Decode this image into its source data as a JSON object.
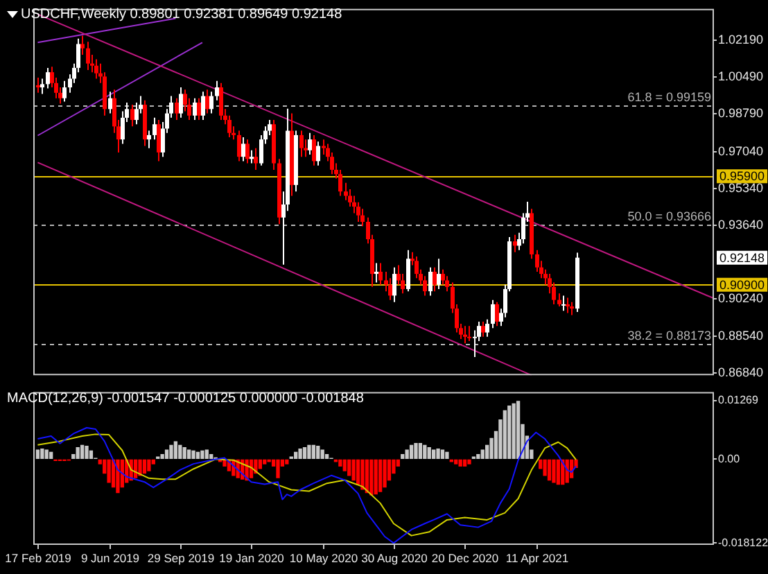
{
  "chart_data": [
    {
      "type": "candlestick",
      "title": "USDCHF,Weekly  0.89801 0.92381 0.89649 0.92148",
      "x": [
        "2019-02-17",
        "2019-02-24",
        "2019-03-03",
        "2019-03-10",
        "2019-03-17",
        "2019-03-24",
        "2019-03-31",
        "2019-04-07",
        "2019-04-14",
        "2019-04-21",
        "2019-04-28",
        "2019-05-05",
        "2019-05-12",
        "2019-05-19",
        "2019-05-26",
        "2019-06-02",
        "2019-06-09",
        "2019-06-16",
        "2019-06-23",
        "2019-06-30",
        "2019-07-07",
        "2019-07-14",
        "2019-07-21",
        "2019-07-28",
        "2019-08-04",
        "2019-08-11",
        "2019-08-18",
        "2019-08-25",
        "2019-09-01",
        "2019-09-08",
        "2019-09-15",
        "2019-09-22",
        "2019-09-29",
        "2019-10-06",
        "2019-10-13",
        "2019-10-20",
        "2019-10-27",
        "2019-11-03",
        "2019-11-10",
        "2019-11-17",
        "2019-11-24",
        "2019-12-01",
        "2019-12-08",
        "2019-12-15",
        "2019-12-22",
        "2019-12-29",
        "2020-01-05",
        "2020-01-12",
        "2020-01-19",
        "2020-01-26",
        "2020-02-02",
        "2020-02-09",
        "2020-02-16",
        "2020-02-23",
        "2020-03-01",
        "2020-03-08",
        "2020-03-15",
        "2020-03-22",
        "2020-03-29",
        "2020-04-05",
        "2020-04-12",
        "2020-04-19",
        "2020-04-26",
        "2020-05-03",
        "2020-05-10",
        "2020-05-17",
        "2020-05-24",
        "2020-05-31",
        "2020-06-07",
        "2020-06-14",
        "2020-06-21",
        "2020-06-28",
        "2020-07-05",
        "2020-07-12",
        "2020-07-19",
        "2020-07-26",
        "2020-08-02",
        "2020-08-09",
        "2020-08-16",
        "2020-08-23",
        "2020-08-30",
        "2020-09-06",
        "2020-09-13",
        "2020-09-20",
        "2020-09-27",
        "2020-10-04",
        "2020-10-11",
        "2020-10-18",
        "2020-10-25",
        "2020-11-01",
        "2020-11-08",
        "2020-11-15",
        "2020-11-22",
        "2020-11-29",
        "2020-12-06",
        "2020-12-13",
        "2020-12-20",
        "2020-12-27",
        "2021-01-03",
        "2021-01-10",
        "2021-01-17",
        "2021-01-24",
        "2021-01-31",
        "2021-02-07",
        "2021-02-14",
        "2021-02-21",
        "2021-02-28",
        "2021-03-07",
        "2021-03-14",
        "2021-03-21",
        "2021-03-28",
        "2021-04-04",
        "2021-04-11",
        "2021-04-18",
        "2021-04-25",
        "2021-05-02",
        "2021-05-09",
        "2021-05-16",
        "2021-05-23",
        "2021-05-30",
        "2021-06-06",
        "2021-06-13"
      ],
      "ohlc": [
        [
          1.001,
          1.0045,
          0.9975,
          1.0
        ],
        [
          1.0,
          1.004,
          0.997,
          1.0015
        ],
        [
          1.0015,
          1.009,
          0.9995,
          1.007
        ],
        [
          1.007,
          1.0095,
          1.0,
          1.002
        ],
        [
          1.002,
          1.0045,
          0.995,
          0.9975
        ],
        [
          0.9975,
          1.0,
          0.9925,
          0.995
        ],
        [
          0.995,
          1.003,
          0.9935,
          1.0
        ],
        [
          1.0,
          1.006,
          0.9975,
          1.004
        ],
        [
          1.004,
          1.011,
          1.002,
          1.009
        ],
        [
          1.009,
          1.0225,
          1.007,
          1.02
        ],
        [
          1.02,
          1.0238,
          1.015,
          1.018
        ],
        [
          1.018,
          1.021,
          1.008,
          1.011
        ],
        [
          1.011,
          1.015,
          1.007,
          1.01
        ],
        [
          1.01,
          1.013,
          1.004,
          1.0065
        ],
        [
          1.0065,
          1.011,
          1.002,
          1.005
        ],
        [
          1.005,
          1.007,
          0.987,
          0.99
        ],
        [
          0.99,
          0.998,
          0.988,
          0.995
        ],
        [
          0.995,
          0.999,
          0.979,
          0.982
        ],
        [
          0.982,
          0.985,
          0.97,
          0.976
        ],
        [
          0.976,
          0.989,
          0.974,
          0.986
        ],
        [
          0.986,
          0.993,
          0.984,
          0.99
        ],
        [
          0.99,
          0.992,
          0.982,
          0.985
        ],
        [
          0.985,
          0.993,
          0.983,
          0.99
        ],
        [
          0.99,
          0.996,
          0.988,
          0.992
        ],
        [
          0.992,
          0.994,
          0.973,
          0.976
        ],
        [
          0.976,
          0.98,
          0.972,
          0.978
        ],
        [
          0.978,
          0.986,
          0.976,
          0.983
        ],
        [
          0.983,
          0.985,
          0.966,
          0.97
        ],
        [
          0.97,
          0.984,
          0.968,
          0.981
        ],
        [
          0.981,
          0.99,
          0.979,
          0.988
        ],
        [
          0.988,
          0.996,
          0.986,
          0.993
        ],
        [
          0.993,
          0.995,
          0.985,
          0.988
        ],
        [
          0.988,
          1.0,
          0.986,
          0.997
        ],
        [
          0.997,
          0.999,
          0.989,
          0.992
        ],
        [
          0.992,
          0.995,
          0.985,
          0.987
        ],
        [
          0.987,
          0.995,
          0.985,
          0.993
        ],
        [
          0.993,
          0.995,
          0.985,
          0.987
        ],
        [
          0.987,
          0.998,
          0.985,
          0.996
        ],
        [
          0.996,
          0.999,
          0.988,
          0.99
        ],
        [
          0.99,
          0.998,
          0.988,
          0.996
        ],
        [
          0.996,
          1.003,
          0.994,
          1.0
        ],
        [
          1.0,
          1.002,
          0.985,
          0.987
        ],
        [
          0.987,
          0.99,
          0.983,
          0.985
        ],
        [
          0.985,
          0.987,
          0.977,
          0.979
        ],
        [
          0.979,
          0.982,
          0.976,
          0.978
        ],
        [
          0.978,
          0.98,
          0.966,
          0.968
        ],
        [
          0.968,
          0.977,
          0.966,
          0.974
        ],
        [
          0.974,
          0.976,
          0.965,
          0.967
        ],
        [
          0.967,
          0.971,
          0.965,
          0.968
        ],
        [
          0.968,
          0.972,
          0.962,
          0.965
        ],
        [
          0.965,
          0.978,
          0.964,
          0.976
        ],
        [
          0.976,
          0.982,
          0.974,
          0.98
        ],
        [
          0.98,
          0.985,
          0.978,
          0.983
        ],
        [
          0.983,
          0.985,
          0.962,
          0.965
        ],
        [
          0.965,
          0.967,
          0.937,
          0.94
        ],
        [
          0.94,
          0.952,
          0.9183,
          0.946
        ],
        [
          0.946,
          0.9902,
          0.943,
          0.98
        ],
        [
          0.98,
          0.988,
          0.95,
          0.955
        ],
        [
          0.955,
          0.98,
          0.952,
          0.978
        ],
        [
          0.978,
          0.98,
          0.968,
          0.972
        ],
        [
          0.972,
          0.976,
          0.968,
          0.971
        ],
        [
          0.971,
          0.979,
          0.969,
          0.976
        ],
        [
          0.976,
          0.978,
          0.964,
          0.966
        ],
        [
          0.966,
          0.975,
          0.964,
          0.973
        ],
        [
          0.973,
          0.976,
          0.969,
          0.972
        ],
        [
          0.972,
          0.974,
          0.966,
          0.968
        ],
        [
          0.968,
          0.97,
          0.96,
          0.962
        ],
        [
          0.962,
          0.965,
          0.958,
          0.96
        ],
        [
          0.96,
          0.962,
          0.95,
          0.952
        ],
        [
          0.952,
          0.956,
          0.948,
          0.95
        ],
        [
          0.95,
          0.953,
          0.945,
          0.947
        ],
        [
          0.947,
          0.95,
          0.942,
          0.945
        ],
        [
          0.945,
          0.947,
          0.938,
          0.941
        ],
        [
          0.941,
          0.944,
          0.936,
          0.938
        ],
        [
          0.938,
          0.94,
          0.928,
          0.93
        ],
        [
          0.93,
          0.932,
          0.908,
          0.914
        ],
        [
          0.914,
          0.919,
          0.91,
          0.915
        ],
        [
          0.915,
          0.919,
          0.909,
          0.911
        ],
        [
          0.911,
          0.915,
          0.906,
          0.909
        ],
        [
          0.909,
          0.912,
          0.902,
          0.904
        ],
        [
          0.904,
          0.917,
          0.901,
          0.914
        ],
        [
          0.914,
          0.918,
          0.909,
          0.911
        ],
        [
          0.911,
          0.914,
          0.905,
          0.907
        ],
        [
          0.907,
          0.925,
          0.906,
          0.921
        ],
        [
          0.921,
          0.924,
          0.918,
          0.92
        ],
        [
          0.92,
          0.922,
          0.912,
          0.914
        ],
        [
          0.914,
          0.916,
          0.909,
          0.911
        ],
        [
          0.911,
          0.913,
          0.904,
          0.906
        ],
        [
          0.906,
          0.917,
          0.904,
          0.915
        ],
        [
          0.915,
          0.917,
          0.906,
          0.909
        ],
        [
          0.909,
          0.921,
          0.907,
          0.914
        ],
        [
          0.914,
          0.916,
          0.909,
          0.911
        ],
        [
          0.911,
          0.913,
          0.906,
          0.908
        ],
        [
          0.908,
          0.91,
          0.896,
          0.898
        ],
        [
          0.898,
          0.9,
          0.887,
          0.889
        ],
        [
          0.889,
          0.891,
          0.884,
          0.886
        ],
        [
          0.886,
          0.89,
          0.882,
          0.885
        ],
        [
          0.885,
          0.89,
          0.883,
          0.885
        ],
        [
          0.885,
          0.888,
          0.8757,
          0.885
        ],
        [
          0.885,
          0.892,
          0.883,
          0.89
        ],
        [
          0.89,
          0.892,
          0.885,
          0.887
        ],
        [
          0.887,
          0.893,
          0.885,
          0.891
        ],
        [
          0.891,
          0.902,
          0.889,
          0.9
        ],
        [
          0.9,
          0.901,
          0.89,
          0.892
        ],
        [
          0.892,
          0.898,
          0.89,
          0.896
        ],
        [
          0.896,
          0.909,
          0.894,
          0.907
        ],
        [
          0.907,
          0.931,
          0.906,
          0.929
        ],
        [
          0.929,
          0.932,
          0.924,
          0.927
        ],
        [
          0.927,
          0.933,
          0.925,
          0.93
        ],
        [
          0.93,
          0.942,
          0.928,
          0.94
        ],
        [
          0.94,
          0.9473,
          0.938,
          0.942
        ],
        [
          0.942,
          0.944,
          0.921,
          0.923
        ],
        [
          0.923,
          0.925,
          0.915,
          0.917
        ],
        [
          0.917,
          0.92,
          0.912,
          0.914
        ],
        [
          0.914,
          0.916,
          0.909,
          0.912
        ],
        [
          0.912,
          0.914,
          0.905,
          0.908
        ],
        [
          0.908,
          0.91,
          0.9,
          0.902
        ],
        [
          0.902,
          0.905,
          0.899,
          0.9
        ],
        [
          0.9,
          0.904,
          0.897,
          0.9
        ],
        [
          0.9,
          0.903,
          0.896,
          0.899
        ],
        [
          0.899,
          0.901,
          0.895,
          0.898
        ],
        [
          0.89801,
          0.92381,
          0.89649,
          0.92148
        ]
      ],
      "colors": [
        "#ff0000",
        "#ffffff",
        "#ffffff",
        "#ff0000",
        "#ff0000",
        "#ff0000",
        "#ffffff",
        "#ffffff",
        "#ffffff",
        "#ffffff",
        "#ff0000",
        "#ff0000",
        "#ff0000",
        "#ff0000",
        "#ff0000",
        "#ff0000",
        "#ffffff",
        "#ff0000",
        "#ff0000",
        "#ffffff",
        "#ffffff",
        "#ff0000",
        "#ffffff",
        "#ffffff",
        "#ff0000",
        "#ffffff",
        "#ffffff",
        "#ff0000",
        "#ffffff",
        "#ffffff",
        "#ffffff",
        "#ff0000",
        "#ffffff",
        "#ff0000",
        "#ff0000",
        "#ffffff",
        "#ff0000",
        "#ffffff",
        "#ff0000",
        "#ffffff",
        "#ffffff",
        "#ff0000",
        "#ff0000",
        "#ff0000",
        "#ff0000",
        "#ff0000",
        "#ffffff",
        "#ff0000",
        "#ffffff",
        "#ff0000",
        "#ffffff",
        "#ffffff",
        "#ffffff",
        "#ff0000",
        "#ff0000",
        "#ffffff",
        "#ffffff",
        "#ff0000",
        "#ffffff",
        "#ff0000",
        "#ff0000",
        "#ffffff",
        "#ff0000",
        "#ffffff",
        "#ff0000",
        "#ff0000",
        "#ff0000",
        "#ff0000",
        "#ff0000",
        "#ff0000",
        "#ff0000",
        "#ff0000",
        "#ff0000",
        "#ff0000",
        "#ff0000",
        "#ff0000",
        "#ffffff",
        "#ff0000",
        "#ff0000",
        "#ff0000",
        "#ffffff",
        "#ff0000",
        "#ff0000",
        "#ffffff",
        "#ff0000",
        "#ff0000",
        "#ff0000",
        "#ff0000",
        "#ffffff",
        "#ff0000",
        "#ffffff",
        "#ff0000",
        "#ff0000",
        "#ff0000",
        "#ff0000",
        "#ff0000",
        "#ff0000",
        "#ff0000",
        "#ffffff",
        "#ffffff",
        "#ff0000",
        "#ffffff",
        "#ffffff",
        "#ff0000",
        "#ffffff",
        "#ffffff",
        "#ffffff",
        "#ff0000",
        "#ffffff",
        "#ffffff",
        "#ffffff",
        "#ff0000",
        "#ff0000",
        "#ff0000",
        "#ff0000",
        "#ff0000",
        "#ff0000",
        "#ff0000",
        "#ffffff",
        "#ff0000",
        "#ff0000",
        "#ffffff"
      ],
      "series": [
        {
          "type": "line",
          "color": "#c01880",
          "x": [
            "2019-02-17",
            "2022-01-16"
          ],
          "values": [
            1.0337,
            0.9027
          ]
        },
        {
          "type": "line",
          "color": "#c01880",
          "x": [
            "2019-02-17",
            "2021-04-04"
          ],
          "values": [
            0.9654,
            0.8673
          ]
        },
        {
          "type": "line",
          "color": "#9a30d0",
          "x": [
            "2019-02-17",
            "2019-09-22"
          ],
          "values": [
            1.0207,
            1.0318
          ]
        },
        {
          "type": "line",
          "color": "#9a30d0",
          "x": [
            "2019-02-17",
            "2019-11-03"
          ],
          "values": [
            0.9778,
            1.0207
          ]
        }
      ],
      "xlim": [
        "2019-02-10",
        "2022-01-16"
      ],
      "ylim": [
        0.8673,
        1.0362
      ],
      "yticks": [
        {
          "value": 1.0219,
          "label": "1.02190"
        },
        {
          "value": 1.0049,
          "label": "1.00490"
        },
        {
          "value": 0.9879,
          "label": "0.98790"
        },
        {
          "value": 0.9704,
          "label": "0.97040"
        },
        {
          "value": 0.9534,
          "label": "0.95340"
        },
        {
          "value": 0.9364,
          "label": "0.93640"
        },
        {
          "value": 0.9024,
          "label": "0.90240"
        },
        {
          "value": 0.8854,
          "label": "0.88540"
        },
        {
          "value": 0.8684,
          "label": "0.86840"
        }
      ],
      "ref_lines": [
        {
          "axis": "y",
          "value": 0.99159,
          "label": "61.8 = 0.99159",
          "color": "#b4b4b4",
          "line_style": "dashed"
        },
        {
          "axis": "y",
          "value": 0.93666,
          "label": "50.0 = 0.93666",
          "color": "#b4b4b4",
          "line_style": "dashed"
        },
        {
          "axis": "y",
          "value": 0.88173,
          "label": "38.2 = 0.88173",
          "color": "#b4b4b4",
          "line_style": "dashed"
        },
        {
          "axis": "y",
          "value": 0.959,
          "label": "0.95900",
          "color": "#e6c200",
          "line_style": "solid"
        },
        {
          "axis": "y",
          "value": 0.909,
          "label": "0.90900",
          "color": "#e6c200",
          "line_style": "solid"
        }
      ],
      "annotations": [
        "0.92148"
      ],
      "tick_labels": "y"
    },
    {
      "type": "bar",
      "title": "MACD(12,26,9) -0.001547 -0.000125 0.000000 -0.001848",
      "x": [
        "2019-02-17",
        "2019-02-24",
        "2019-03-03",
        "2019-03-10",
        "2019-03-17",
        "2019-03-24",
        "2019-03-31",
        "2019-04-07",
        "2019-04-14",
        "2019-04-21",
        "2019-04-28",
        "2019-05-05",
        "2019-05-12",
        "2019-05-19",
        "2019-05-26",
        "2019-06-02",
        "2019-06-09",
        "2019-06-16",
        "2019-06-23",
        "2019-06-30",
        "2019-07-07",
        "2019-07-14",
        "2019-07-21",
        "2019-07-28",
        "2019-08-04",
        "2019-08-11",
        "2019-08-18",
        "2019-08-25",
        "2019-09-01",
        "2019-09-08",
        "2019-09-15",
        "2019-09-22",
        "2019-09-29",
        "2019-10-06",
        "2019-10-13",
        "2019-10-20",
        "2019-10-27",
        "2019-11-03",
        "2019-11-10",
        "2019-11-17",
        "2019-11-24",
        "2019-12-01",
        "2019-12-08",
        "2019-12-15",
        "2019-12-22",
        "2019-12-29",
        "2020-01-05",
        "2020-01-12",
        "2020-01-19",
        "2020-01-26",
        "2020-02-02",
        "2020-02-09",
        "2020-02-16",
        "2020-02-23",
        "2020-03-01",
        "2020-03-08",
        "2020-03-15",
        "2020-03-22",
        "2020-03-29",
        "2020-04-05",
        "2020-04-12",
        "2020-04-19",
        "2020-04-26",
        "2020-05-03",
        "2020-05-10",
        "2020-05-17",
        "2020-05-24",
        "2020-05-31",
        "2020-06-07",
        "2020-06-14",
        "2020-06-21",
        "2020-06-28",
        "2020-07-05",
        "2020-07-12",
        "2020-07-19",
        "2020-07-26",
        "2020-08-02",
        "2020-08-09",
        "2020-08-16",
        "2020-08-23",
        "2020-08-30",
        "2020-09-06",
        "2020-09-13",
        "2020-09-20",
        "2020-09-27",
        "2020-10-04",
        "2020-10-11",
        "2020-10-18",
        "2020-10-25",
        "2020-11-01",
        "2020-11-08",
        "2020-11-15",
        "2020-11-22",
        "2020-11-29",
        "2020-12-06",
        "2020-12-13",
        "2020-12-20",
        "2020-12-27",
        "2021-01-03",
        "2021-01-10",
        "2021-01-17",
        "2021-01-24",
        "2021-01-31",
        "2021-02-07",
        "2021-02-14",
        "2021-02-21",
        "2021-02-28",
        "2021-03-07",
        "2021-03-14",
        "2021-03-21",
        "2021-03-28",
        "2021-04-04",
        "2021-04-11",
        "2021-04-18",
        "2021-04-25",
        "2021-05-02",
        "2021-05-09",
        "2021-05-16",
        "2021-05-23",
        "2021-05-30",
        "2021-06-06",
        "2021-06-13"
      ],
      "values": [
        0.002,
        0.0022,
        0.002,
        0.0015,
        -0.0003,
        -0.0003,
        -0.0003,
        -0.0002,
        0.001,
        0.0025,
        0.003,
        0.0028,
        0.0018,
        0.0002,
        -0.001,
        -0.003,
        -0.005,
        -0.006,
        -0.0072,
        -0.006,
        -0.005,
        -0.0045,
        -0.004,
        -0.0035,
        -0.003,
        -0.0025,
        -0.001,
        0.0005,
        0.001,
        0.002,
        0.003,
        0.0038,
        0.003,
        0.0025,
        0.002,
        0.0018,
        0.0015,
        0.0018,
        0.002,
        0.001,
        0.0003,
        -0.0005,
        -0.0015,
        -0.0025,
        -0.0035,
        -0.004,
        -0.0043,
        -0.0045,
        -0.004,
        -0.003,
        -0.002,
        -0.001,
        -0.0005,
        -0.0015,
        -0.004,
        -0.0015,
        -0.001,
        0.0005,
        0.0015,
        0.0022,
        0.0025,
        0.003,
        0.003,
        0.0028,
        0.002,
        0.001,
        0.0002,
        -0.0005,
        -0.0015,
        -0.0025,
        -0.0035,
        -0.0045,
        -0.0055,
        -0.0065,
        -0.0072,
        -0.0077,
        -0.0075,
        -0.007,
        -0.006,
        -0.0045,
        -0.003,
        -0.0015,
        0.001,
        0.002,
        0.003,
        0.0034,
        0.0034,
        0.003,
        0.0025,
        0.002,
        0.0022,
        0.002,
        0.0015,
        -0.0005,
        -0.001,
        -0.0015,
        -0.0015,
        -0.001,
        0.0005,
        0.001,
        0.002,
        0.003,
        0.0045,
        0.006,
        0.0085,
        0.0105,
        0.0115,
        0.012,
        0.0125,
        0.0075,
        0.005,
        0.002,
        null,
        -0.002,
        -0.0035,
        -0.0045,
        -0.005,
        -0.0054,
        -0.0054,
        -0.005,
        -0.004,
        -0.0018
      ],
      "colors": [
        "#c8c8c8",
        "#c8c8c8",
        "#c8c8c8",
        "#c8c8c8",
        "#ff0000",
        "#ff0000",
        "#ff0000",
        "#ff0000",
        "#c8c8c8",
        "#c8c8c8",
        "#c8c8c8",
        "#c8c8c8",
        "#c8c8c8",
        "#c8c8c8",
        "#ff0000",
        "#ff0000",
        "#ff0000",
        "#ff0000",
        "#ff0000",
        "#ff0000",
        "#ff0000",
        "#ff0000",
        "#ff0000",
        "#ff0000",
        "#ff0000",
        "#ff0000",
        "#ff0000",
        "#c8c8c8",
        "#c8c8c8",
        "#c8c8c8",
        "#c8c8c8",
        "#c8c8c8",
        "#c8c8c8",
        "#c8c8c8",
        "#c8c8c8",
        "#c8c8c8",
        "#c8c8c8",
        "#c8c8c8",
        "#c8c8c8",
        "#c8c8c8",
        "#c8c8c8",
        "#ff0000",
        "#ff0000",
        "#ff0000",
        "#ff0000",
        "#ff0000",
        "#ff0000",
        "#ff0000",
        "#ff0000",
        "#ff0000",
        "#ff0000",
        "#ff0000",
        "#ff0000",
        "#ff0000",
        "#ff0000",
        "#ff0000",
        "#ff0000",
        "#c8c8c8",
        "#c8c8c8",
        "#c8c8c8",
        "#c8c8c8",
        "#c8c8c8",
        "#c8c8c8",
        "#c8c8c8",
        "#c8c8c8",
        "#c8c8c8",
        "#c8c8c8",
        "#ff0000",
        "#ff0000",
        "#ff0000",
        "#ff0000",
        "#ff0000",
        "#ff0000",
        "#ff0000",
        "#ff0000",
        "#ff0000",
        "#ff0000",
        "#ff0000",
        "#ff0000",
        "#ff0000",
        "#ff0000",
        "#ff0000",
        "#c8c8c8",
        "#c8c8c8",
        "#c8c8c8",
        "#c8c8c8",
        "#c8c8c8",
        "#c8c8c8",
        "#c8c8c8",
        "#c8c8c8",
        "#c8c8c8",
        "#c8c8c8",
        "#c8c8c8",
        "#ff0000",
        "#ff0000",
        "#ff0000",
        "#ff0000",
        "#ff0000",
        "#c8c8c8",
        "#c8c8c8",
        "#c8c8c8",
        "#c8c8c8",
        "#c8c8c8",
        "#c8c8c8",
        "#c8c8c8",
        "#c8c8c8",
        "#c8c8c8",
        "#c8c8c8",
        "#c8c8c8",
        "#c8c8c8",
        "#c8c8c8",
        "#c8c8c8",
        "#ff0000",
        "#ff0000",
        "#ff0000",
        "#ff0000",
        "#ff0000",
        "#ff0000",
        "#ff0000",
        "#ff0000",
        "#ff0000",
        "#ff0000"
      ],
      "series": [
        {
          "type": "line",
          "color": "#1414ff",
          "x": [
            "2019-02-17",
            "2019-03-10",
            "2019-03-24",
            "2019-04-14",
            "2019-05-05",
            "2019-05-19",
            "2019-06-02",
            "2019-06-23",
            "2019-07-07",
            "2019-08-04",
            "2019-08-18",
            "2019-09-08",
            "2019-09-29",
            "2019-10-20",
            "2019-11-24",
            "2019-12-08",
            "2019-12-29",
            "2020-01-19",
            "2020-02-09",
            "2020-03-01",
            "2020-03-08",
            "2020-03-15",
            "2020-03-22",
            "2020-04-05",
            "2020-04-26",
            "2020-05-24",
            "2020-06-14",
            "2020-07-05",
            "2020-07-19",
            "2020-08-16",
            "2020-08-30",
            "2020-09-27",
            "2020-10-18",
            "2020-11-01",
            "2020-11-22",
            "2020-12-13",
            "2021-01-10",
            "2021-01-31",
            "2021-02-14",
            "2021-02-28",
            "2021-03-14",
            "2021-03-28",
            "2021-04-11",
            "2021-04-25",
            "2021-05-16",
            "2021-05-30",
            "2021-06-06",
            "2021-06-13"
          ],
          "values": [
            0.0044,
            0.005,
            0.0034,
            0.0055,
            0.0068,
            0.0065,
            0.0039,
            -0.0023,
            -0.0038,
            -0.0049,
            -0.0061,
            -0.0043,
            -0.0023,
            -0.001,
            0,
            0.0003,
            -0.0023,
            -0.0049,
            -0.0054,
            -0.0049,
            -0.0087,
            -0.0076,
            -0.008,
            -0.0066,
            -0.0052,
            -0.0035,
            -0.0045,
            -0.0074,
            -0.0116,
            -0.0167,
            -0.0181,
            -0.0152,
            -0.0139,
            -0.0131,
            -0.0118,
            -0.0142,
            -0.0147,
            -0.0134,
            -0.0095,
            -0.0064,
            -0.0002,
            0.0039,
            0.0058,
            0.0044,
            0.0008,
            -0.0023,
            -0.0028,
            -0.0015
          ]
        },
        {
          "type": "line",
          "color": "#d2d200",
          "x": [
            "2019-02-17",
            "2019-03-24",
            "2019-04-28",
            "2019-05-19",
            "2019-06-09",
            "2019-06-30",
            "2019-07-14",
            "2019-08-11",
            "2019-09-01",
            "2019-09-22",
            "2019-10-20",
            "2019-11-24",
            "2019-12-22",
            "2020-01-19",
            "2020-02-16",
            "2020-03-22",
            "2020-04-19",
            "2020-05-17",
            "2020-06-14",
            "2020-07-12",
            "2020-08-09",
            "2020-08-30",
            "2020-09-27",
            "2020-10-25",
            "2020-11-22",
            "2020-12-20",
            "2021-01-24",
            "2021-02-21",
            "2021-03-14",
            "2021-04-04",
            "2021-04-25",
            "2021-05-16",
            "2021-05-30",
            "2021-06-13"
          ],
          "values": [
            0.0031,
            0.0039,
            0.005,
            0.0054,
            0.0053,
            0.0019,
            -0.0023,
            -0.0041,
            -0.0043,
            -0.0043,
            -0.0021,
            0,
            -0.0002,
            -0.0018,
            -0.0049,
            -0.0066,
            -0.0069,
            -0.0052,
            -0.0045,
            -0.0059,
            -0.0095,
            -0.0139,
            -0.0165,
            -0.0157,
            -0.0131,
            -0.0126,
            -0.0131,
            -0.0116,
            -0.0085,
            -0.0023,
            0.0024,
            0.0037,
            0.0024,
            -0.0001
          ]
        }
      ],
      "xlim": [
        "2019-02-10",
        "2022-01-16"
      ],
      "ylim": [
        -0.0185,
        0.0145
      ],
      "yticks": [
        0.01269,
        {
          "value": 0,
          "label": "0.00"
        },
        -0.018122
      ],
      "xticks": [
        {
          "value": "2019-02-17",
          "label": "17 Feb 2019"
        },
        {
          "value": "2019-06-09",
          "label": "9 Jun 2019"
        },
        {
          "value": "2019-09-29",
          "label": "29 Sep 2019"
        },
        {
          "value": "2020-01-19",
          "label": "19 Jan 2020"
        },
        {
          "value": "2020-05-10",
          "label": "10 May 2020"
        },
        {
          "value": "2020-08-30",
          "label": "30 Aug 2020"
        },
        {
          "value": "2020-12-20",
          "label": "20 Dec 2020"
        },
        {
          "value": "2021-04-11",
          "label": "11 Apr 2021"
        }
      ]
    }
  ]
}
